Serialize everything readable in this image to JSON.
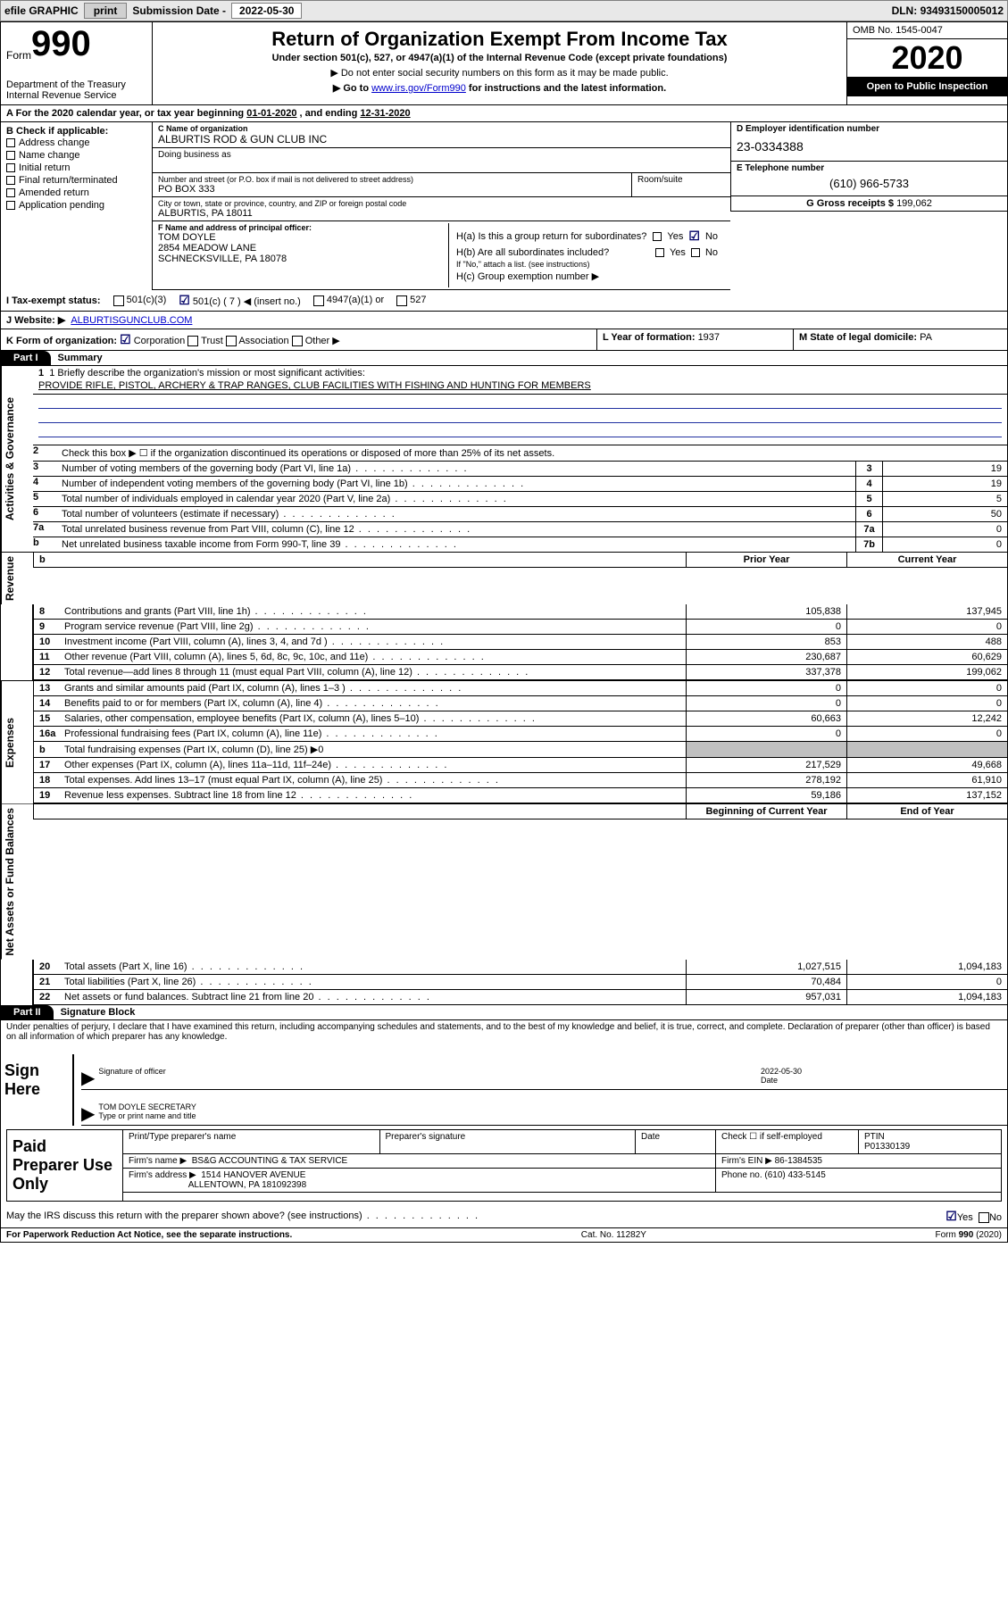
{
  "topbar": {
    "efile": "efile GRAPHIC",
    "print": "print",
    "subdate_label": "Submission Date - ",
    "subdate": "2022-05-30",
    "dln_label": "DLN: ",
    "dln": "93493150005012"
  },
  "header": {
    "form_word": "Form",
    "form_num": "990",
    "dept": "Department of the Treasury\nInternal Revenue Service",
    "title": "Return of Organization Exempt From Income Tax",
    "under": "Under section 501(c), 527, or 4947(a)(1) of the Internal Revenue Code (except private foundations)",
    "ssn_note": "▶ Do not enter social security numbers on this form as it may be made public.",
    "goto_pre": "▶ Go to ",
    "goto_link": "www.irs.gov/Form990",
    "goto_post": " for instructions and the latest information.",
    "omb": "OMB No. 1545-0047",
    "year": "2020",
    "inspect": "Open to Public Inspection"
  },
  "row_a": {
    "text_pre": "For the 2020 calendar year, or tax year beginning ",
    "begin": "01-01-2020",
    "mid": "   , and ending ",
    "end": "12-31-2020"
  },
  "col_b": {
    "head": "B Check if applicable:",
    "items": [
      "Address change",
      "Name change",
      "Initial return",
      "Final return/terminated",
      "Amended return",
      "Application pending"
    ]
  },
  "col_c": {
    "name_label": "C Name of organization",
    "name": "ALBURTIS ROD & GUN CLUB INC",
    "dba_label": "Doing business as",
    "street_label": "Number and street (or P.O. box if mail is not delivered to street address)",
    "street": "PO BOX 333",
    "suite_label": "Room/suite",
    "city_label": "City or town, state or province, country, and ZIP or foreign postal code",
    "city": "ALBURTIS, PA  18011"
  },
  "col_d": {
    "label": "D Employer identification number",
    "val": "23-0334388"
  },
  "col_e": {
    "label": "E Telephone number",
    "val": "(610) 966-5733"
  },
  "col_g": {
    "label": "G Gross receipts $ ",
    "val": "199,062"
  },
  "officer": {
    "label": "F  Name and address of principal officer:",
    "name": "TOM DOYLE",
    "addr1": "2854 MEADOW LANE",
    "addr2": "SCHNECKSVILLE, PA  18078"
  },
  "h_block": {
    "ha": "H(a)  Is this a group return for subordinates?",
    "hb": "H(b)  Are all subordinates included?",
    "hb_note": "If \"No,\" attach a list. (see instructions)",
    "hc": "H(c)  Group exemption number ▶",
    "yes": "Yes",
    "no": "No"
  },
  "row_i": {
    "label": "I   Tax-exempt status:",
    "c3": "501(c)(3)",
    "c7_pre": "501(c) ( ",
    "c7_num": "7",
    "c7_post": " ) ◀ (insert no.)",
    "a1": "4947(a)(1) or",
    "s527": "527"
  },
  "row_j": {
    "label": "J   Website: ▶",
    "url": "ALBURTISGUNCLUB.COM"
  },
  "row_k": {
    "k": "K Form of organization:",
    "corp": "Corporation",
    "trust": "Trust",
    "assoc": "Association",
    "other": "Other ▶",
    "l": "L Year of formation: ",
    "l_val": "1937",
    "m": "M State of legal domicile: ",
    "m_val": "PA"
  },
  "part1": {
    "label": "Part I",
    "title": "Summary"
  },
  "mission": {
    "q1": "1  Briefly describe the organization's mission or most significant activities:",
    "text": "PROVIDE RIFLE, PISTOL, ARCHERY & TRAP RANGES, CLUB FACILITIES WITH FISHING AND HUNTING FOR MEMBERS"
  },
  "gov_lines": [
    {
      "n": "2",
      "t": "Check this box ▶ ☐  if the organization discontinued its operations or disposed of more than 25% of its net assets."
    },
    {
      "n": "3",
      "t": "Number of voting members of the governing body (Part VI, line 1a)",
      "box": "3",
      "v": "19"
    },
    {
      "n": "4",
      "t": "Number of independent voting members of the governing body (Part VI, line 1b)",
      "box": "4",
      "v": "19"
    },
    {
      "n": "5",
      "t": "Total number of individuals employed in calendar year 2020 (Part V, line 2a)",
      "box": "5",
      "v": "5"
    },
    {
      "n": "6",
      "t": "Total number of volunteers (estimate if necessary)",
      "box": "6",
      "v": "50"
    },
    {
      "n": "7a",
      "t": "Total unrelated business revenue from Part VIII, column (C), line 12",
      "box": "7a",
      "v": "0"
    },
    {
      "n": "b",
      "t": "Net unrelated business taxable income from Form 990-T, line 39",
      "box": "7b",
      "v": "0"
    }
  ],
  "vtabs": {
    "gov": "Activities & Governance",
    "rev": "Revenue",
    "exp": "Expenses",
    "net": "Net Assets or Fund Balances"
  },
  "cols": {
    "prior": "Prior Year",
    "current": "Current Year",
    "boy": "Beginning of Current Year",
    "eoy": "End of Year"
  },
  "revenue": [
    {
      "n": "8",
      "t": "Contributions and grants (Part VIII, line 1h)",
      "p": "105,838",
      "c": "137,945"
    },
    {
      "n": "9",
      "t": "Program service revenue (Part VIII, line 2g)",
      "p": "0",
      "c": "0"
    },
    {
      "n": "10",
      "t": "Investment income (Part VIII, column (A), lines 3, 4, and 7d )",
      "p": "853",
      "c": "488"
    },
    {
      "n": "11",
      "t": "Other revenue (Part VIII, column (A), lines 5, 6d, 8c, 9c, 10c, and 11e)",
      "p": "230,687",
      "c": "60,629"
    },
    {
      "n": "12",
      "t": "Total revenue—add lines 8 through 11 (must equal Part VIII, column (A), line 12)",
      "p": "337,378",
      "c": "199,062"
    }
  ],
  "expenses": [
    {
      "n": "13",
      "t": "Grants and similar amounts paid (Part IX, column (A), lines 1–3 )",
      "p": "0",
      "c": "0"
    },
    {
      "n": "14",
      "t": "Benefits paid to or for members (Part IX, column (A), line 4)",
      "p": "0",
      "c": "0"
    },
    {
      "n": "15",
      "t": "Salaries, other compensation, employee benefits (Part IX, column (A), lines 5–10)",
      "p": "60,663",
      "c": "12,242"
    },
    {
      "n": "16a",
      "t": "Professional fundraising fees (Part IX, column (A), line 11e)",
      "p": "0",
      "c": "0"
    },
    {
      "n": "b",
      "t": "Total fundraising expenses (Part IX, column (D), line 25)  ▶0",
      "p": "",
      "c": "",
      "gray": true
    },
    {
      "n": "17",
      "t": "Other expenses (Part IX, column (A), lines 11a–11d, 11f–24e)",
      "p": "217,529",
      "c": "49,668"
    },
    {
      "n": "18",
      "t": "Total expenses. Add lines 13–17 (must equal Part IX, column (A), line 25)",
      "p": "278,192",
      "c": "61,910"
    },
    {
      "n": "19",
      "t": "Revenue less expenses. Subtract line 18 from line 12",
      "p": "59,186",
      "c": "137,152"
    }
  ],
  "netassets": [
    {
      "n": "20",
      "t": "Total assets (Part X, line 16)",
      "p": "1,027,515",
      "c": "1,094,183"
    },
    {
      "n": "21",
      "t": "Total liabilities (Part X, line 26)",
      "p": "70,484",
      "c": "0"
    },
    {
      "n": "22",
      "t": "Net assets or fund balances. Subtract line 21 from line 20",
      "p": "957,031",
      "c": "1,094,183"
    }
  ],
  "part2": {
    "label": "Part II",
    "title": "Signature Block"
  },
  "penalties": "Under penalties of perjury, I declare that I have examined this return, including accompanying schedules and statements, and to the best of my knowledge and belief, it is true, correct, and complete. Declaration of preparer (other than officer) is based on all information of which preparer has any knowledge.",
  "sign": {
    "here": "Sign Here",
    "sig_officer": "Signature of officer",
    "date_label": "Date",
    "date": "2022-05-30",
    "typed": "TOM DOYLE  SECRETARY",
    "typed_label": "Type or print name and title"
  },
  "prep": {
    "label": "Paid Preparer Use Only",
    "h1": "Print/Type preparer's name",
    "h2": "Preparer's signature",
    "h3": "Date",
    "h4_a": "Check ☐  if self-employed",
    "h5_lbl": "PTIN",
    "h5_val": "P01330139",
    "firm_lbl": "Firm's name     ▶",
    "firm": "BS&G ACCOUNTING & TAX SERVICE",
    "ein_lbl": "Firm's EIN ▶ ",
    "ein": "86-1384535",
    "addr_lbl": "Firm's address ▶",
    "addr1": "1514 HANOVER AVENUE",
    "addr2": "ALLENTOWN, PA  181092398",
    "phone_lbl": "Phone no. ",
    "phone": "(610) 433-5145"
  },
  "discuss": {
    "q": "May the IRS discuss this return with the preparer shown above? (see instructions)",
    "yes": "Yes",
    "no": "No"
  },
  "footer": {
    "left": "For Paperwork Reduction Act Notice, see the separate instructions.",
    "mid": "Cat. No. 11282Y",
    "right": "Form 990 (2020)"
  }
}
